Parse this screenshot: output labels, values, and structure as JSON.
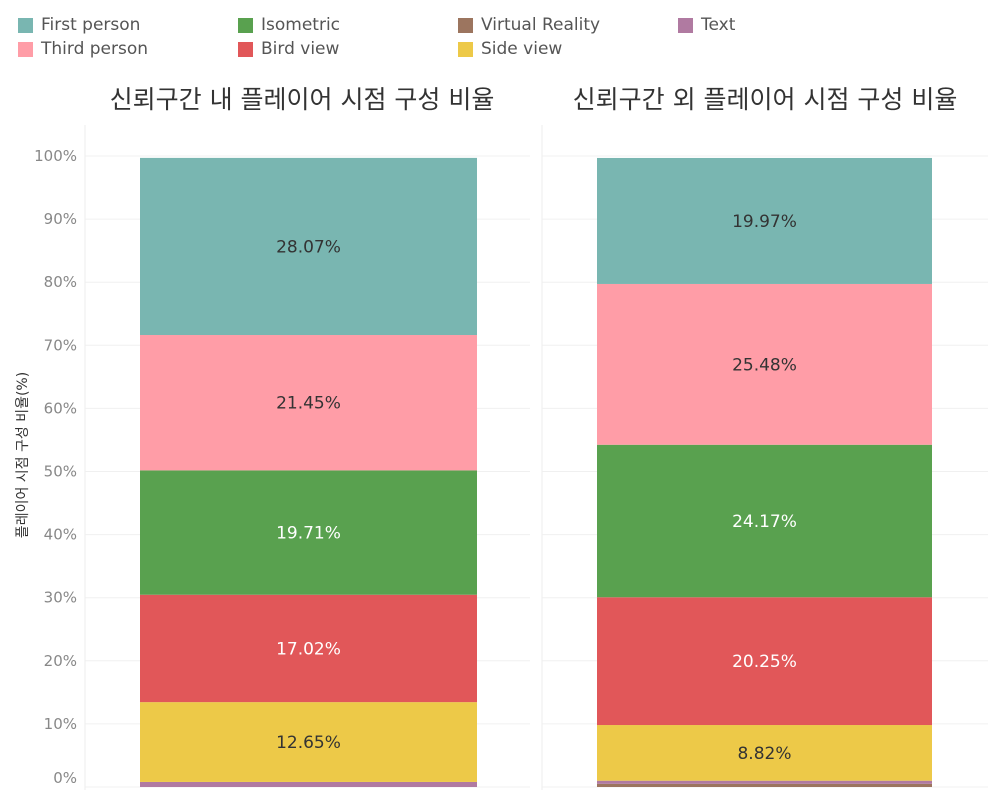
{
  "legend": [
    {
      "name": "First person",
      "color": "#79b6b1"
    },
    {
      "name": "Isometric",
      "color": "#59a14f"
    },
    {
      "name": "Virtual Reality",
      "color": "#9c755f"
    },
    {
      "name": "Text",
      "color": "#b07aa1"
    },
    {
      "name": "Third person",
      "color": "#ff9da7"
    },
    {
      "name": "Bird view",
      "color": "#e15759"
    },
    {
      "name": "Side view",
      "color": "#edc948"
    }
  ],
  "chart_data": [
    {
      "type": "bar",
      "stacked": true,
      "title": "신뢰구간 내 플레이어 시점 구성 비율",
      "ylabel": "플레이어 시점 구성 비율(%)",
      "ylim": [
        0,
        100
      ],
      "yticks": [
        "0%",
        "10%",
        "20%",
        "30%",
        "40%",
        "50%",
        "60%",
        "70%",
        "80%",
        "90%",
        "100%"
      ],
      "series": [
        {
          "name": "Text",
          "value": 0.8,
          "label": ""
        },
        {
          "name": "Side view",
          "value": 12.65,
          "label": "12.65%"
        },
        {
          "name": "Bird view",
          "value": 17.02,
          "label": "17.02%"
        },
        {
          "name": "Isometric",
          "value": 19.71,
          "label": "19.71%"
        },
        {
          "name": "Third person",
          "value": 21.45,
          "label": "21.45%"
        },
        {
          "name": "First person",
          "value": 28.07,
          "label": "28.07%"
        }
      ]
    },
    {
      "type": "bar",
      "stacked": true,
      "title": "신뢰구간 외 플레이어 시점 구성 비율",
      "ylim": [
        0,
        100
      ],
      "series": [
        {
          "name": "Virtual Reality",
          "value": 0.5,
          "label": ""
        },
        {
          "name": "Text",
          "value": 0.5,
          "label": ""
        },
        {
          "name": "Side view",
          "value": 8.82,
          "label": "8.82%"
        },
        {
          "name": "Bird view",
          "value": 20.25,
          "label": "20.25%"
        },
        {
          "name": "Isometric",
          "value": 24.17,
          "label": "24.17%"
        },
        {
          "name": "Third person",
          "value": 25.48,
          "label": "25.48%"
        },
        {
          "name": "First person",
          "value": 19.97,
          "label": "19.97%"
        }
      ]
    }
  ]
}
